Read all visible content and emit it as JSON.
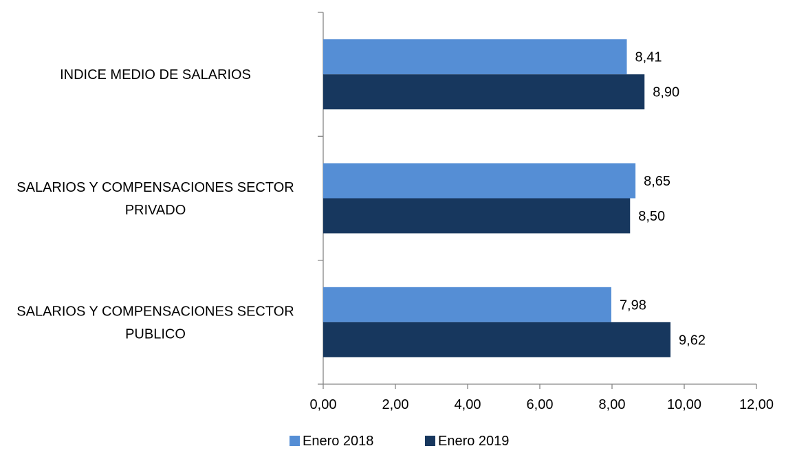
{
  "chart_data": {
    "type": "bar",
    "orientation": "horizontal",
    "categories": [
      [
        "INDICE MEDIO DE SALARIOS"
      ],
      [
        "SALARIOS Y COMPENSACIONES SECTOR",
        "PRIVADO"
      ],
      [
        "SALARIOS Y COMPENSACIONES SECTOR",
        "PUBLICO"
      ]
    ],
    "series": [
      {
        "name": "Enero 2018",
        "color": "#558ED5",
        "values": [
          8.41,
          8.65,
          7.98
        ]
      },
      {
        "name": "Enero 2019",
        "color": "#17375E",
        "values": [
          8.9,
          8.5,
          9.62
        ]
      }
    ],
    "data_labels": [
      [
        "8,41",
        "8,65",
        "7,98"
      ],
      [
        "8,90",
        "8,50",
        "9,62"
      ]
    ],
    "x_ticks": [
      0,
      2,
      4,
      6,
      8,
      10,
      12
    ],
    "x_tick_labels": [
      "0,00",
      "2,00",
      "4,00",
      "6,00",
      "8,00",
      "10,00",
      "12,00"
    ],
    "xlim": [
      0,
      12
    ],
    "title": "",
    "xlabel": "",
    "ylabel": "",
    "grid": false,
    "legend_position": "bottom"
  }
}
